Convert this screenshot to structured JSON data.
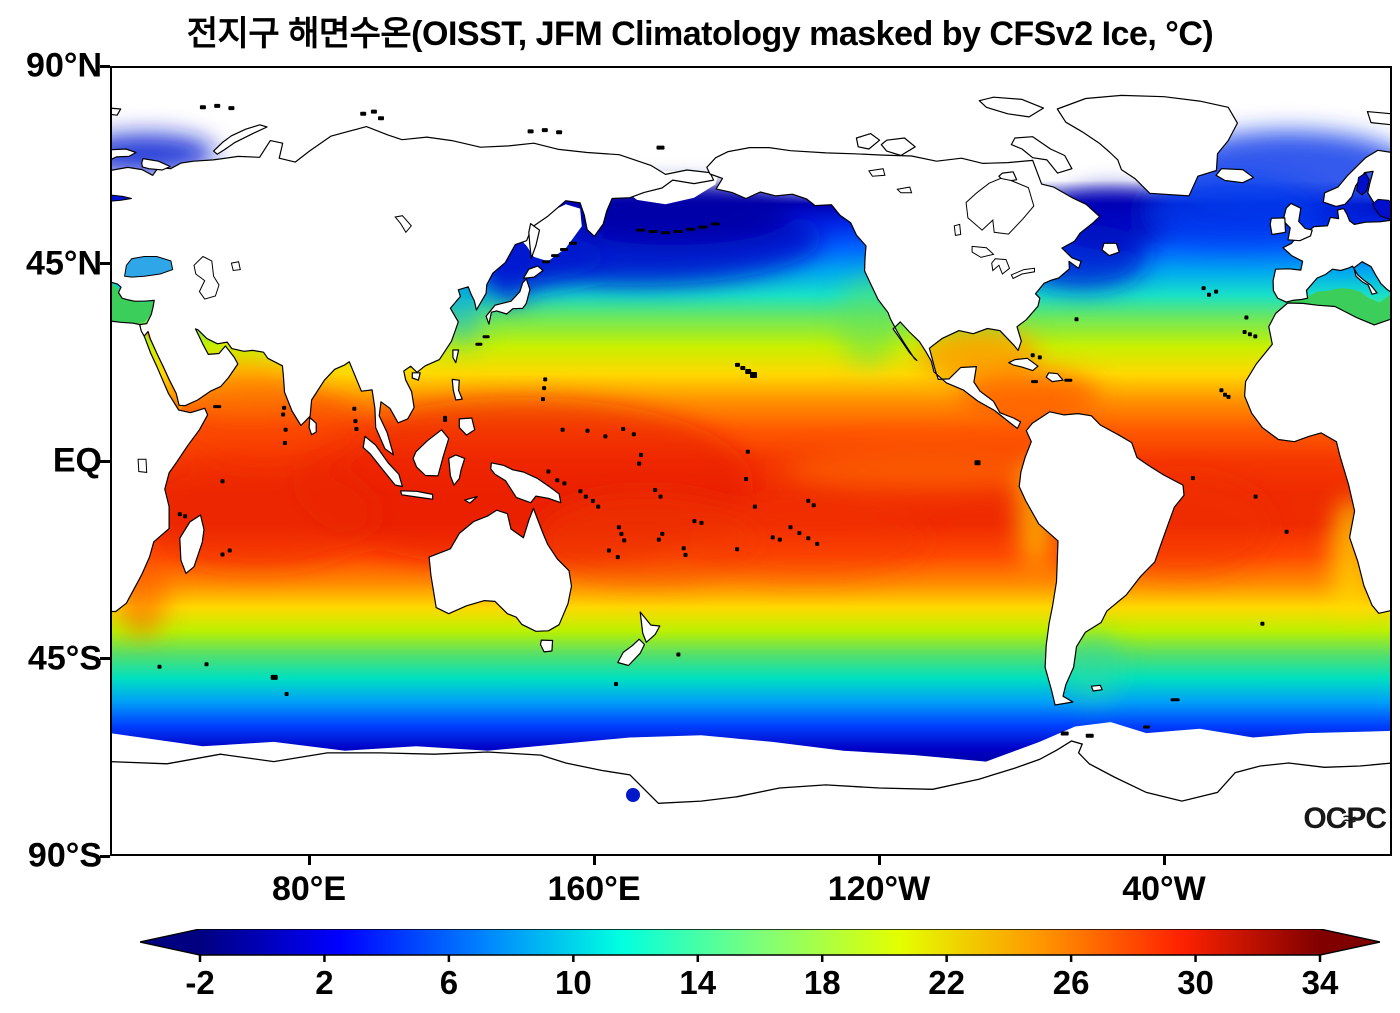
{
  "figure": {
    "title": "전지구 해면수온(OISST, JFM Climatology masked by CFSv2 Ice, °C)",
    "logo_text": "OCPC"
  },
  "chart_data": {
    "type": "heatmap",
    "title": "전지구 해면수온(OISST, JFM Climatology masked by CFSv2 Ice, °C)",
    "title_translation": "Global sea surface temperature (OISST, JFM climatology masked by CFSv2 ice, °C)",
    "variable": "sea surface temperature",
    "units": "°C",
    "dataset": "OISST",
    "period": "JFM Climatology",
    "mask": "CFSv2 Ice (ice-covered ocean and land shown white)",
    "projection": {
      "type": "equirectangular",
      "lon_range_deg_east": [
        24,
        384
      ],
      "lat_range": [
        -90,
        90
      ],
      "center": "Pacific-centered global map"
    },
    "x_axis": {
      "ticks": [
        "80°E",
        "160°E",
        "120°W",
        "40°W"
      ],
      "tick_lon_deg_east": [
        80,
        160,
        240,
        320
      ]
    },
    "y_axis": {
      "ticks": [
        "90°N",
        "45°N",
        "EQ",
        "45°S",
        "90°S"
      ],
      "tick_lat": [
        90,
        45,
        0,
        -45,
        -90
      ]
    },
    "colorbar": {
      "orientation": "horizontal",
      "colormap": "jet",
      "min": -2,
      "max": 34,
      "extend": "both",
      "ticks": [
        -2,
        2,
        6,
        10,
        14,
        18,
        22,
        26,
        30,
        34
      ],
      "tick_labels": [
        "-2",
        "2",
        "6",
        "10",
        "14",
        "18",
        "22",
        "26",
        "30",
        "34"
      ],
      "units": "°C"
    },
    "zonal_mean_sst_estimate": {
      "lat": [
        65,
        60,
        55,
        50,
        45,
        40,
        35,
        30,
        25,
        20,
        15,
        10,
        5,
        0,
        -5,
        -10,
        -15,
        -20,
        -25,
        -30,
        -35,
        -40,
        -45,
        -50,
        -55,
        -60,
        -65
      ],
      "sst_c": [
        -1,
        1,
        3,
        5,
        8,
        11,
        15,
        18,
        21,
        24,
        26,
        27.5,
        28,
        28,
        28.5,
        28.5,
        28,
        26,
        23,
        20,
        16,
        12,
        8,
        5,
        2,
        0,
        -1
      ]
    },
    "features": [
      "Tropical warm pool (28-30°C, deep red) across the Indian Ocean and western Pacific",
      "Sharp winter SST fronts east of Japan (Kuroshio) and off the US east coast (Gulf Stream), with dark blue (<4°C) water inshore",
      "Cold subpolar North Pacific, Bering Sea, northwest Atlantic and circumpolar Southern Ocean in blue/dark blue",
      "White regions are land and ice-masked ocean: Arctic, Hudson Bay, Sea of Okhotsk, northern Bering Sea and a ring around Antarctica",
      "Equatorial eastern Pacific cold tongue and coastal upwelling off Peru, California and southwest Africa (yellow/green near coasts)",
      "Mediterranean green (~15°C), Black Sea cyan-blue, Baltic dark blue, Red Sea orange, Persian Gulf yellow"
    ],
    "colors": {
      "land": "#ffffff",
      "coastline": "#000000",
      "frame": "#000000",
      "background": "#ffffff",
      "jet_stops": [
        "#000080",
        "#0000ff",
        "#0080ff",
        "#00ffe0",
        "#7dff7a",
        "#e4ff00",
        "#ff9700",
        "#ff2200",
        "#800000"
      ]
    }
  }
}
